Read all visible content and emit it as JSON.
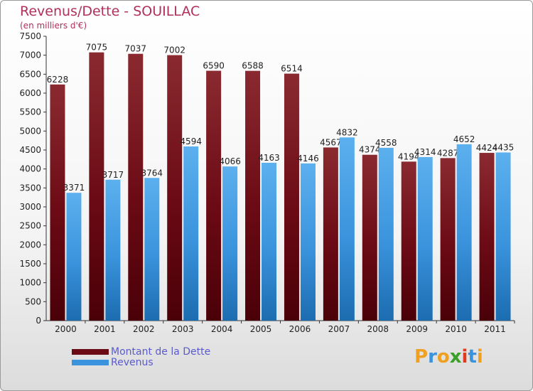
{
  "chart_data": {
    "type": "bar",
    "title": "Revenus/Dette - SOUILLAC",
    "subtitle": "(en milliers d'€)",
    "categories": [
      "2000",
      "2001",
      "2002",
      "2003",
      "2004",
      "2005",
      "2006",
      "2007",
      "2008",
      "2009",
      "2010",
      "2011"
    ],
    "series": [
      {
        "name": "Montant de la Dette",
        "color": "#6b0a14",
        "values": [
          6228,
          7075,
          7037,
          7002,
          6590,
          6588,
          6514,
          4567,
          4374,
          4194,
          4287,
          4424
        ]
      },
      {
        "name": "Revenus",
        "color": "#3a93dc",
        "values": [
          3371,
          3717,
          3764,
          4594,
          4066,
          4163,
          4146,
          4832,
          4558,
          4314,
          4652,
          4435
        ]
      }
    ],
    "data_labels": [
      [
        "6228",
        "7075",
        "7037",
        "7002",
        "6590",
        "6588",
        "6514",
        "4567",
        "4374",
        "4194",
        "4287",
        "4424"
      ],
      [
        "3371",
        "3717",
        "3764",
        "4594",
        "4066",
        "4163",
        "4146",
        "4832",
        "4558",
        "4314",
        "4652",
        "4435"
      ]
    ],
    "ylim": [
      0,
      7500
    ],
    "yticks": [
      0,
      500,
      1000,
      1500,
      2000,
      2500,
      3000,
      3500,
      4000,
      4500,
      5000,
      5500,
      6000,
      6500,
      7000,
      7500
    ],
    "grid": false,
    "legend": "bottom-left"
  },
  "logo": {
    "text": "Proxiti",
    "letters": [
      "P",
      "r",
      "o",
      "x",
      "i",
      "t",
      "i"
    ],
    "colors": [
      "#f0a020",
      "#3a93dc",
      "#f0a020",
      "#3aa02a",
      "#e03a20",
      "#3a93dc",
      "#f0a020"
    ]
  }
}
